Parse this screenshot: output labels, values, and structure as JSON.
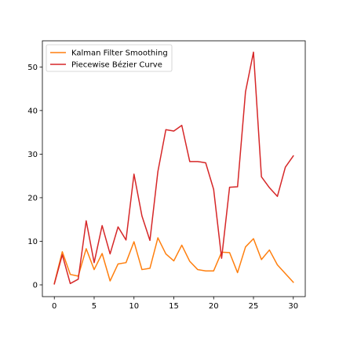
{
  "chart_data": {
    "type": "line",
    "title": "",
    "xlabel": "",
    "ylabel": "",
    "xlim": [
      -1.5,
      31.5
    ],
    "ylim": [
      -2.7,
      56.0
    ],
    "x_ticks": [
      0,
      5,
      10,
      15,
      20,
      25,
      30
    ],
    "y_ticks": [
      0,
      10,
      20,
      30,
      40,
      50
    ],
    "x_tick_labels": [
      "0",
      "5",
      "10",
      "15",
      "20",
      "25",
      "30"
    ],
    "y_tick_labels": [
      "0",
      "10",
      "20",
      "30",
      "40",
      "50"
    ],
    "grid": false,
    "legend_position": "top-left",
    "x": [
      0,
      1,
      2,
      3,
      4,
      5,
      6,
      7,
      8,
      9,
      10,
      11,
      12,
      13,
      14,
      15,
      16,
      17,
      18,
      19,
      20,
      21,
      22,
      23,
      24,
      25,
      26,
      27,
      28,
      29,
      30
    ],
    "series": [
      {
        "name": "Kalman Filter Smoothing",
        "color": "#ff7f0e",
        "values": [
          0.3,
          7.6,
          2.4,
          2.0,
          8.3,
          3.5,
          7.2,
          0.9,
          4.8,
          5.1,
          9.9,
          3.5,
          3.8,
          10.8,
          7.1,
          5.5,
          9.1,
          5.4,
          3.5,
          3.2,
          3.2,
          7.5,
          7.4,
          2.8,
          8.7,
          10.6,
          5.8,
          8.0,
          4.6,
          2.6,
          0.6
        ]
      },
      {
        "name": "Piecewise Bézier Curve",
        "color": "#d62728",
        "values": [
          0.2,
          6.9,
          0.3,
          1.3,
          14.7,
          5.1,
          13.6,
          7.1,
          13.3,
          10.3,
          25.4,
          15.8,
          10.2,
          26.0,
          35.6,
          35.3,
          36.6,
          28.3,
          28.3,
          28.0,
          21.9,
          6.1,
          22.4,
          22.5,
          44.3,
          53.4,
          24.8,
          22.3,
          20.3,
          27.0,
          29.6
        ]
      }
    ]
  }
}
